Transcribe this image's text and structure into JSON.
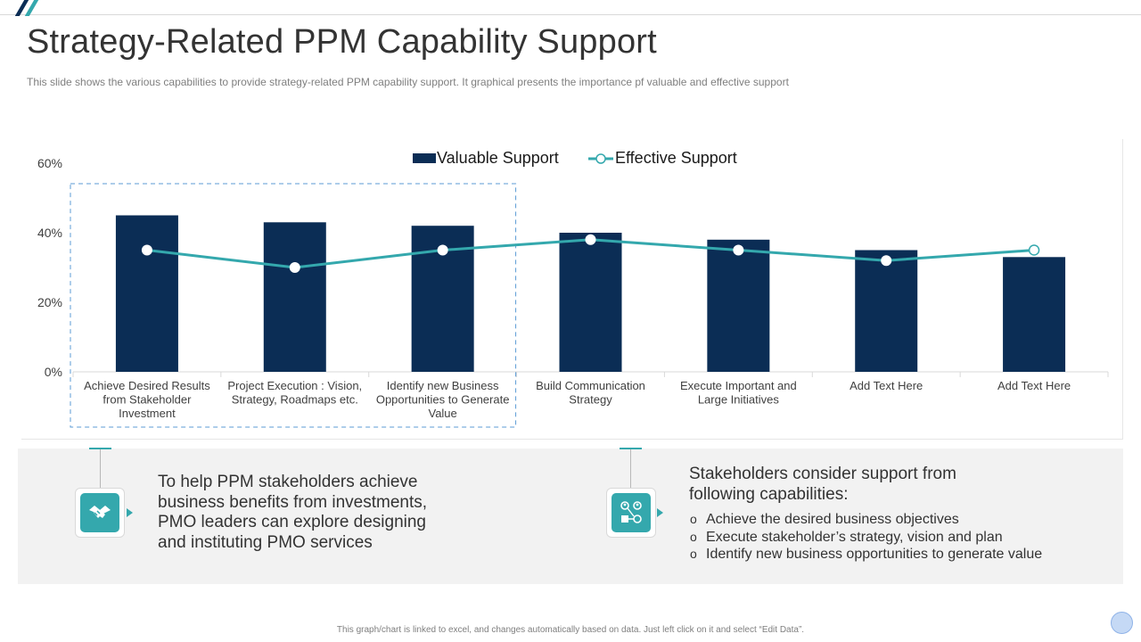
{
  "header": {
    "title": "Strategy-Related PPM Capability Support",
    "subtitle": "This slide shows the various capabilities to provide strategy-related PPM capability support. It graphical presents the importance pf valuable and effective support"
  },
  "chart_data": {
    "type": "bar",
    "title": "",
    "categories": [
      [
        "Achieve Desired Results",
        "from Stakeholder",
        "Investment"
      ],
      [
        "Project Execution : Vision,",
        "Strategy, Roadmaps etc."
      ],
      [
        "Identify new Business",
        "Opportunities to Generate",
        "Value"
      ],
      [
        "Build Communication",
        "Strategy"
      ],
      [
        "Execute Important and",
        "Large Initiatives"
      ],
      [
        "Add Text Here"
      ],
      [
        "Add Text Here"
      ]
    ],
    "series": [
      {
        "name": "Valuable Support",
        "kind": "bar",
        "color": "#0b2d55",
        "values": [
          45,
          43,
          42,
          40,
          38,
          35,
          33
        ]
      },
      {
        "name": "Effective Support",
        "kind": "line",
        "color": "#34a8ad",
        "values": [
          35,
          30,
          35,
          38,
          35,
          32,
          35
        ]
      }
    ],
    "ylim": [
      0,
      60
    ],
    "yticks": [
      "0%",
      "20%",
      "40%",
      "60%"
    ],
    "ytick_values": [
      0,
      20,
      40,
      60
    ],
    "xlabel": "",
    "ylabel": "",
    "legend": "top-center",
    "highlight_categories": [
      0,
      1,
      2
    ]
  },
  "info": {
    "left_text": "To help PPM stakeholders achieve business benefits from investments, PMO leaders can explore designing and instituting PMO services",
    "right_title": "Stakeholders consider support from following capabilities:",
    "bullet_marker": "o",
    "bullets": [
      "Achieve the desired business objectives",
      "Execute stakeholder’s strategy, vision and plan",
      "Identify  new business opportunities to generate value"
    ],
    "left_icon": "handshake-icon",
    "right_icon": "people-network-icon"
  },
  "footer": {
    "note": "This graph/chart is linked to excel, and changes automatically based on data. Just left click on it and select “Edit Data”."
  },
  "colors": {
    "navy": "#0b2d55",
    "teal": "#34a8ad",
    "panel": "#f2f2f2"
  }
}
